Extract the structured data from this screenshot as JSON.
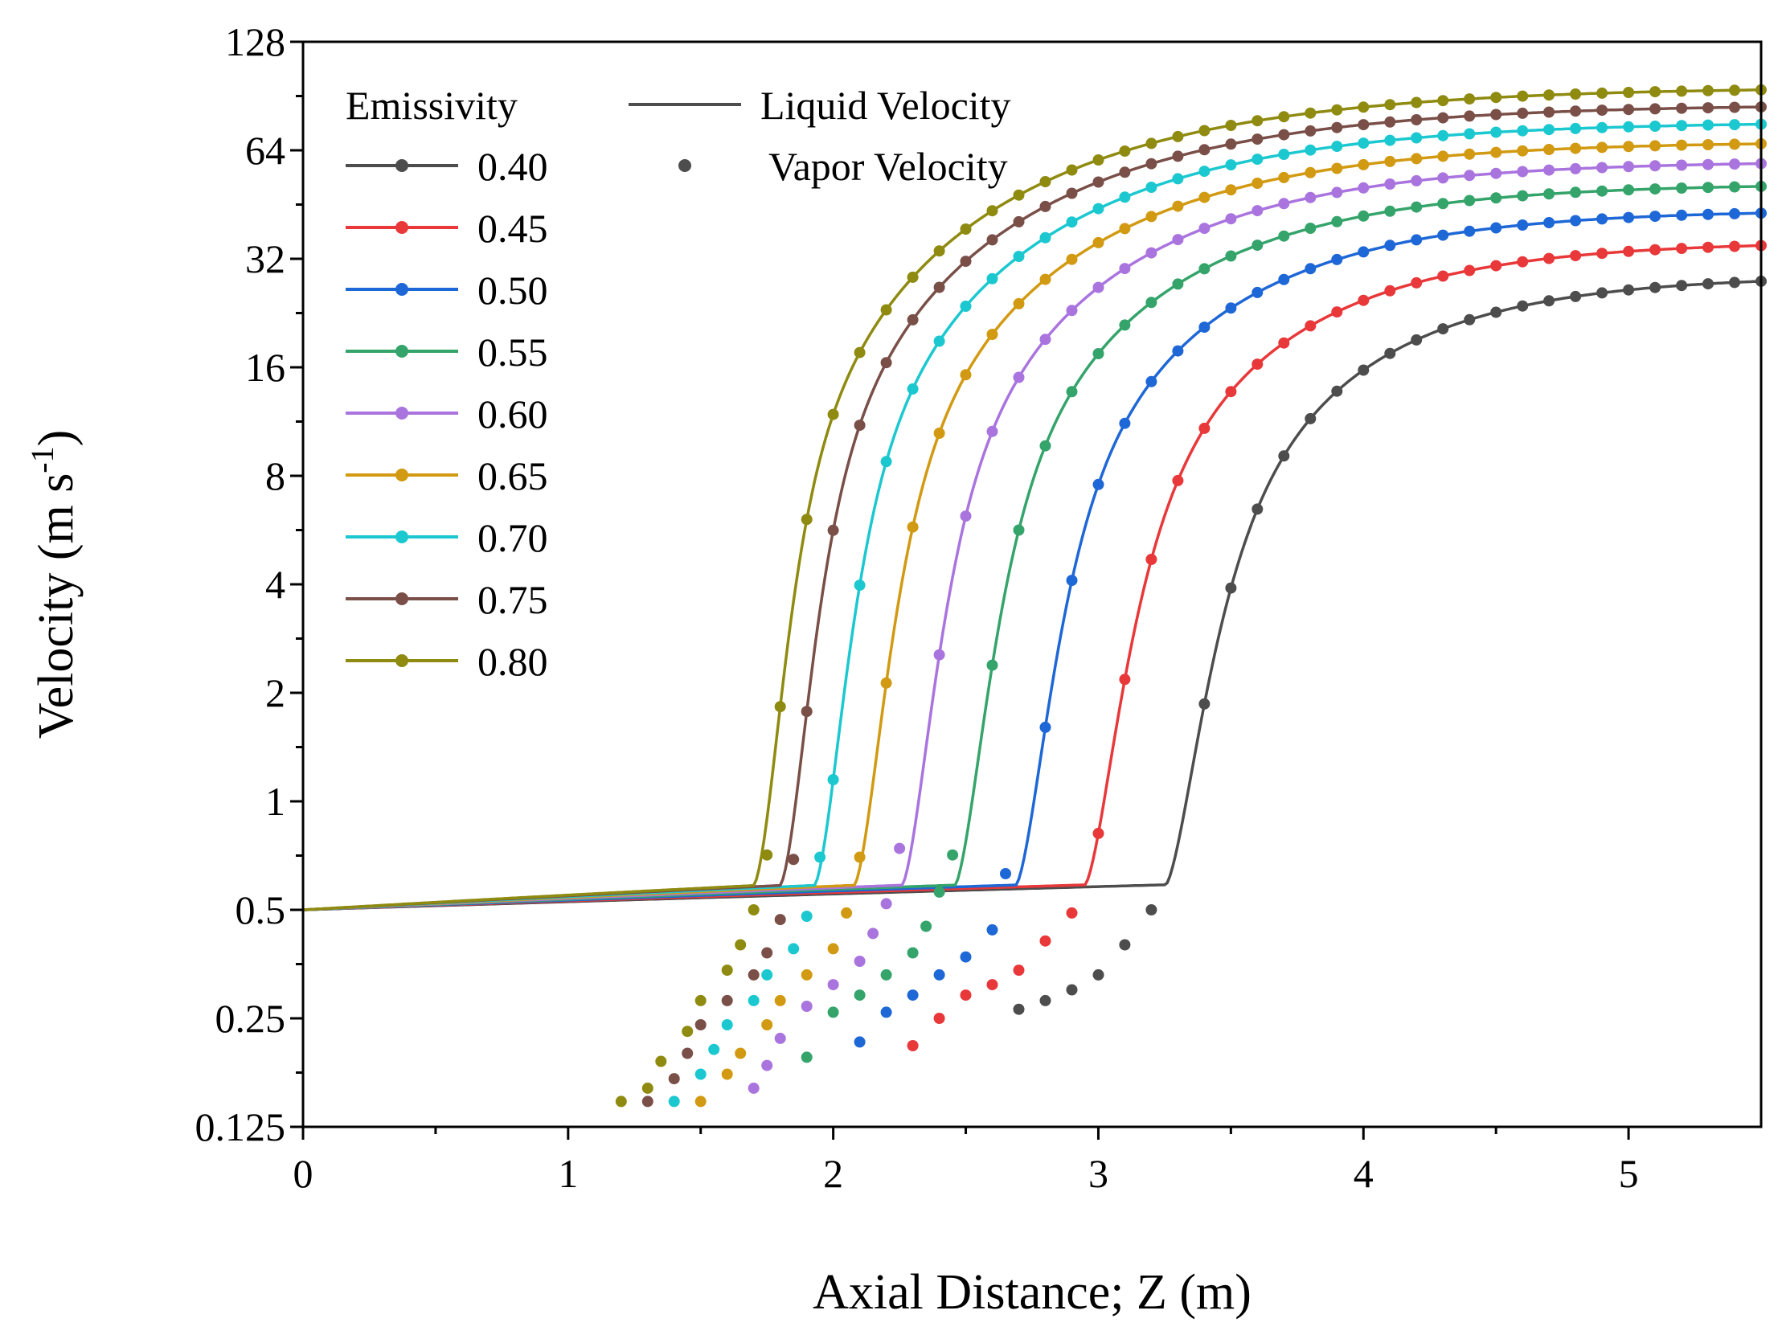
{
  "chart_data": {
    "type": "line",
    "title": "",
    "xlabel": "Axial Distance; Z (m)",
    "ylabel": "Velocity (m s",
    "ylabel_superscript": "-1",
    "ylabel_close": ")",
    "xlim": [
      0,
      5.5
    ],
    "ylim": [
      0.125,
      128
    ],
    "yscale": "log2",
    "grid": false,
    "x_ticks": [
      0,
      1,
      2,
      3,
      4,
      5
    ],
    "x_tick_labels": [
      "0",
      "1",
      "2",
      "3",
      "4",
      "5"
    ],
    "y_ticks": [
      0.125,
      0.25,
      0.5,
      1,
      2,
      4,
      8,
      16,
      32,
      64,
      128
    ],
    "y_tick_labels": [
      "0.125",
      "0.25",
      "0.5",
      "1",
      "2",
      "4",
      "8",
      "16",
      "32",
      "64",
      "128"
    ],
    "legend": {
      "placement": "top-left",
      "title": "Emissivity",
      "liquid_label": "Liquid Velocity",
      "vapor_label": "Vapor Velocity"
    },
    "series": [
      {
        "name": "0.40",
        "color": "#4d4d4d",
        "z0": 3.375,
        "w": 0.12,
        "A": 28.0,
        "sk": 0.85,
        "vapor": [
          [
            3.2,
            0.5
          ],
          [
            3.1,
            0.4
          ],
          [
            3.0,
            0.33
          ],
          [
            2.9,
            0.3
          ],
          [
            2.8,
            0.28
          ],
          [
            2.7,
            0.265
          ]
        ]
      },
      {
        "name": "0.45",
        "color": "#e8383a",
        "z0": 3.07,
        "w": 0.11,
        "A": 35.0,
        "sk": 0.9,
        "vapor": [
          [
            2.9,
            0.49
          ],
          [
            2.8,
            0.41
          ],
          [
            2.7,
            0.34
          ],
          [
            2.6,
            0.31
          ],
          [
            2.5,
            0.29
          ],
          [
            2.4,
            0.25
          ],
          [
            2.3,
            0.21
          ]
        ]
      },
      {
        "name": "0.50",
        "color": "#1e67d6",
        "z0": 2.81,
        "w": 0.1,
        "A": 43.0,
        "sk": 0.95,
        "vapor": [
          [
            2.65,
            0.63
          ],
          [
            2.6,
            0.44
          ],
          [
            2.5,
            0.37
          ],
          [
            2.4,
            0.33
          ],
          [
            2.3,
            0.29
          ],
          [
            2.2,
            0.26
          ],
          [
            2.1,
            0.215
          ]
        ]
      },
      {
        "name": "0.55",
        "color": "#35a46b",
        "z0": 2.58,
        "w": 0.095,
        "A": 51.0,
        "sk": 1.0,
        "vapor": [
          [
            2.45,
            0.71
          ],
          [
            2.4,
            0.56
          ],
          [
            2.35,
            0.45
          ],
          [
            2.3,
            0.38
          ],
          [
            2.2,
            0.33
          ],
          [
            2.1,
            0.29
          ],
          [
            2.0,
            0.26
          ],
          [
            1.9,
            0.195
          ]
        ]
      },
      {
        "name": "0.60",
        "color": "#aa74df",
        "z0": 2.38,
        "w": 0.09,
        "A": 59.0,
        "sk": 1.05,
        "vapor": [
          [
            2.25,
            0.74
          ],
          [
            2.2,
            0.52
          ],
          [
            2.15,
            0.43
          ],
          [
            2.1,
            0.36
          ],
          [
            2.0,
            0.31
          ],
          [
            1.9,
            0.27
          ],
          [
            1.8,
            0.22
          ],
          [
            1.75,
            0.185
          ],
          [
            1.7,
            0.16
          ]
        ]
      },
      {
        "name": "0.65",
        "color": "#d29a12",
        "z0": 2.2,
        "w": 0.085,
        "A": 67.0,
        "sk": 1.1,
        "vapor": [
          [
            2.1,
            0.7
          ],
          [
            2.05,
            0.49
          ],
          [
            2.0,
            0.39
          ],
          [
            1.9,
            0.33
          ],
          [
            1.8,
            0.28
          ],
          [
            1.75,
            0.24
          ],
          [
            1.65,
            0.2
          ],
          [
            1.6,
            0.175
          ],
          [
            1.5,
            0.147
          ]
        ]
      },
      {
        "name": "0.70",
        "color": "#1cc8d0",
        "z0": 2.05,
        "w": 0.08,
        "A": 76.0,
        "sk": 1.15,
        "vapor": [
          [
            1.95,
            0.7
          ],
          [
            1.9,
            0.48
          ],
          [
            1.85,
            0.39
          ],
          [
            1.75,
            0.33
          ],
          [
            1.7,
            0.28
          ],
          [
            1.6,
            0.24
          ],
          [
            1.55,
            0.205
          ],
          [
            1.5,
            0.175
          ],
          [
            1.4,
            0.147
          ]
        ]
      },
      {
        "name": "0.75",
        "color": "#7a4f48",
        "z0": 1.92,
        "w": 0.075,
        "A": 85.0,
        "sk": 1.2,
        "vapor": [
          [
            1.85,
            0.69
          ],
          [
            1.8,
            0.47
          ],
          [
            1.75,
            0.38
          ],
          [
            1.7,
            0.33
          ],
          [
            1.6,
            0.28
          ],
          [
            1.5,
            0.24
          ],
          [
            1.45,
            0.2
          ],
          [
            1.4,
            0.17
          ],
          [
            1.3,
            0.147
          ]
        ]
      },
      {
        "name": "0.80",
        "color": "#8f8a10",
        "z0": 1.82,
        "w": 0.07,
        "A": 95.0,
        "sk": 1.25,
        "vapor": [
          [
            1.75,
            0.71
          ],
          [
            1.7,
            0.5
          ],
          [
            1.65,
            0.4
          ],
          [
            1.6,
            0.34
          ],
          [
            1.5,
            0.28
          ],
          [
            1.45,
            0.23
          ],
          [
            1.35,
            0.19
          ],
          [
            1.3,
            0.16
          ],
          [
            1.2,
            0.147
          ]
        ]
      }
    ]
  }
}
